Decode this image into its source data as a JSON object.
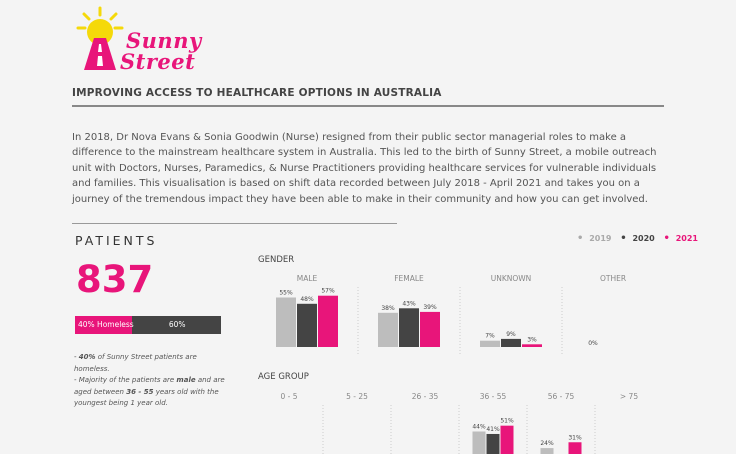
{
  "logo": {
    "word1": "Sunny",
    "word2": "Street"
  },
  "subtitle": "IMPROVING ACCESS TO HEALTHCARE OPTIONS IN AUSTRALIA",
  "intro": "In 2018, Dr Nova Evans & Sonia Goodwin (Nurse) resigned from their public sector managerial roles to make a difference to the mainstream healthcare system in Australia. This led to the birth of Sunny Street,  a mobile outreach unit with Doctors, Nurses, Paramedics, & Nurse Practitioners providing healthcare services for vulnerable individuals and families. This visualisation is based on shift data recorded between July 2018 - April 2021 and takes you on a journey of the tremendous impact they have been able to make in their community and how you can get involved.",
  "patients": {
    "title": "PATIENTS",
    "count": "837",
    "homeless_pct": 40,
    "homeless_label": "40% Homeless",
    "other_label": "60%",
    "notes": {
      "n1_pre": "- ",
      "n1_bold": "40%",
      "n1_post": " of Sunny Street patients are homeless.",
      "n2_pre": "- Majority of the patients are ",
      "n2_bold1": "male",
      "n2_mid": " and are aged between ",
      "n2_bold2": "36 - 55",
      "n2_post": " years old with the youngest being 1 year old."
    }
  },
  "legend": {
    "years": [
      {
        "label": "2019",
        "color": "#aaaaaa"
      },
      {
        "label": "2020",
        "color": "#444444"
      },
      {
        "label": "2021",
        "color": "#e8157a"
      }
    ]
  },
  "colors": {
    "y2019": "#bdbdbd",
    "y2020": "#444444",
    "y2021": "#e8157a",
    "accent": "#e8157a"
  },
  "chart_data": [
    {
      "type": "bar",
      "title": "GENDER",
      "categories": [
        "MALE",
        "FEMALE",
        "UNKNOWN",
        "OTHER"
      ],
      "series": [
        {
          "name": "2019",
          "values": [
            55,
            38,
            7,
            0
          ]
        },
        {
          "name": "2020",
          "values": [
            48,
            43,
            9,
            0
          ]
        },
        {
          "name": "2021",
          "values": [
            57,
            39,
            3,
            0
          ]
        }
      ],
      "data_labels": [
        [
          "55%",
          "48%",
          "57%"
        ],
        [
          "38%",
          "43%",
          "39%"
        ],
        [
          "7%",
          "9%",
          "3%"
        ],
        [
          "0%"
        ]
      ],
      "ylim": [
        0,
        100
      ]
    },
    {
      "type": "bar",
      "title": "AGE GROUP",
      "categories": [
        "0 - 5",
        "5 - 25",
        "26 - 35",
        "36 - 55",
        "56 - 75",
        "> 75"
      ],
      "series": [
        {
          "name": "2019",
          "values": [
            null,
            null,
            null,
            44,
            24,
            null
          ]
        },
        {
          "name": "2020",
          "values": [
            null,
            null,
            null,
            41,
            null,
            null
          ]
        },
        {
          "name": "2021",
          "values": [
            null,
            null,
            null,
            51,
            31,
            null
          ]
        }
      ],
      "data_labels": [
        [],
        [],
        [],
        [
          "44%",
          "41%",
          "51%"
        ],
        [
          "24%",
          "",
          "31%"
        ],
        []
      ],
      "ylim": [
        0,
        100
      ]
    }
  ]
}
